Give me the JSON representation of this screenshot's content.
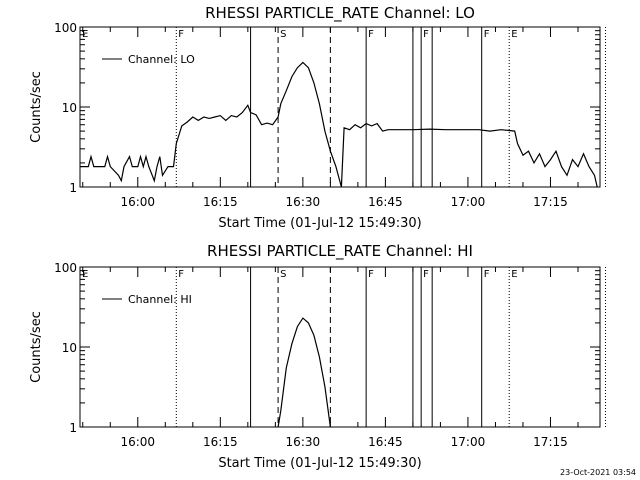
{
  "footer": {
    "timestamp": "23-Oct-2021 03:54"
  },
  "chart_data": [
    {
      "type": "line",
      "title": "RHESSI PARTICLE_RATE Channel: LO",
      "xlabel": "Start Time (01-Jul-12 15:49:30)",
      "ylabel": "Counts/sec",
      "yscale": "log",
      "ylim": [
        1,
        100
      ],
      "xlim": [
        "15:49:30",
        "17:24:00"
      ],
      "x_ticks": [
        "16:00",
        "16:15",
        "16:30",
        "16:45",
        "17:00",
        "17:15"
      ],
      "y_ticks": [
        "1",
        "10",
        "100"
      ],
      "legend": {
        "position": "top-left",
        "entries": [
          "Channel: LO"
        ]
      },
      "flags": [
        {
          "label": "E",
          "time": "15:49:30",
          "style": "none"
        },
        {
          "label": "F",
          "time": "16:07:00",
          "style": "dotted"
        },
        {
          "label": "",
          "time": "16:20:30",
          "style": "solid"
        },
        {
          "label": "S",
          "time": "16:25:30",
          "style": "dashed"
        },
        {
          "label": "",
          "time": "16:35:00",
          "style": "dashed"
        },
        {
          "label": "F",
          "time": "16:41:30",
          "style": "solid"
        },
        {
          "label": "",
          "time": "16:50:00",
          "style": "solid"
        },
        {
          "label": "F",
          "time": "16:51:30",
          "style": "solid"
        },
        {
          "label": "",
          "time": "16:53:30",
          "style": "solid"
        },
        {
          "label": "F",
          "time": "17:02:30",
          "style": "solid"
        },
        {
          "label": "E",
          "time": "17:07:30",
          "style": "dotted"
        },
        {
          "label": "",
          "time": "17:25:00",
          "style": "dotted"
        }
      ],
      "series": [
        {
          "name": "Channel: LO",
          "points": [
            [
              "15:49:30",
              1.8
            ],
            [
              "15:51:00",
              1.8
            ],
            [
              "15:51:30",
              2.4
            ],
            [
              "15:52:00",
              1.8
            ],
            [
              "15:54:00",
              1.8
            ],
            [
              "15:54:30",
              2.4
            ],
            [
              "15:55:00",
              1.8
            ],
            [
              "15:56:30",
              1.4
            ],
            [
              "15:57:00",
              1.2
            ],
            [
              "15:57:30",
              1.8
            ],
            [
              "15:58:30",
              2.4
            ],
            [
              "15:59:00",
              1.8
            ],
            [
              "16:00:00",
              1.8
            ],
            [
              "16:00:30",
              2.4
            ],
            [
              "16:01:00",
              1.8
            ],
            [
              "16:01:30",
              2.4
            ],
            [
              "16:02:00",
              1.8
            ],
            [
              "16:03:00",
              1.2
            ],
            [
              "16:03:30",
              1.8
            ],
            [
              "16:04:00",
              2.4
            ],
            [
              "16:04:30",
              1.4
            ],
            [
              "16:05:30",
              1.8
            ],
            [
              "16:06:30",
              1.8
            ],
            [
              "16:07:00",
              3.5
            ],
            [
              "16:08:00",
              5.8
            ],
            [
              "16:09:00",
              6.5
            ],
            [
              "16:10:00",
              7.5
            ],
            [
              "16:11:00",
              6.8
            ],
            [
              "16:12:00",
              7.5
            ],
            [
              "16:13:00",
              7.2
            ],
            [
              "16:14:00",
              7.5
            ],
            [
              "16:15:00",
              7.8
            ],
            [
              "16:16:00",
              6.8
            ],
            [
              "16:17:00",
              7.8
            ],
            [
              "16:18:00",
              7.5
            ],
            [
              "16:19:00",
              8.5
            ],
            [
              "16:20:00",
              10.5
            ],
            [
              "16:20:30",
              8.5
            ],
            [
              "16:21:30",
              8.0
            ],
            [
              "16:22:30",
              6.0
            ],
            [
              "16:23:30",
              6.3
            ],
            [
              "16:24:30",
              6.0
            ],
            [
              "16:25:30",
              7.5
            ],
            [
              "16:26:00",
              11
            ],
            [
              "16:27:00",
              16
            ],
            [
              "16:28:00",
              24
            ],
            [
              "16:29:00",
              31
            ],
            [
              "16:30:00",
              36
            ],
            [
              "16:31:00",
              31
            ],
            [
              "16:32:00",
              20
            ],
            [
              "16:33:00",
              11
            ],
            [
              "16:34:00",
              5
            ],
            [
              "16:35:00",
              2.8
            ],
            [
              "16:36:00",
              1.8
            ],
            [
              "16:37:00",
              1.0
            ],
            [
              "16:37:30",
              5.5
            ],
            [
              "16:38:30",
              5.2
            ],
            [
              "16:39:30",
              6.0
            ],
            [
              "16:40:30",
              5.5
            ],
            [
              "16:41:30",
              6.2
            ],
            [
              "16:42:30",
              5.8
            ],
            [
              "16:43:30",
              6.2
            ],
            [
              "16:44:30",
              5.0
            ],
            [
              "16:45:30",
              5.2
            ],
            [
              "16:47:00",
              5.2
            ],
            [
              "16:50:00",
              5.2
            ],
            [
              "16:53:00",
              5.3
            ],
            [
              "16:56:00",
              5.2
            ],
            [
              "16:59:00",
              5.2
            ],
            [
              "17:02:00",
              5.2
            ],
            [
              "17:04:00",
              5.0
            ],
            [
              "17:06:00",
              5.2
            ],
            [
              "17:08:30",
              5.0
            ],
            [
              "17:09:00",
              3.5
            ],
            [
              "17:10:00",
              2.5
            ],
            [
              "17:11:00",
              2.8
            ],
            [
              "17:12:00",
              2.0
            ],
            [
              "17:13:00",
              2.6
            ],
            [
              "17:14:00",
              1.8
            ],
            [
              "17:15:00",
              2.2
            ],
            [
              "17:16:00",
              2.8
            ],
            [
              "17:17:00",
              1.8
            ],
            [
              "17:18:00",
              1.4
            ],
            [
              "17:19:00",
              2.2
            ],
            [
              "17:20:00",
              1.8
            ],
            [
              "17:21:00",
              2.6
            ],
            [
              "17:22:00",
              1.8
            ],
            [
              "17:23:00",
              1.4
            ],
            [
              "17:23:30",
              1.0
            ]
          ]
        }
      ]
    },
    {
      "type": "line",
      "title": "RHESSI PARTICLE_RATE Channel: HI",
      "xlabel": "Start Time (01-Jul-12 15:49:30)",
      "ylabel": "Counts/sec",
      "yscale": "log",
      "ylim": [
        1,
        100
      ],
      "xlim": [
        "15:49:30",
        "17:24:00"
      ],
      "x_ticks": [
        "16:00",
        "16:15",
        "16:30",
        "16:45",
        "17:00",
        "17:15"
      ],
      "y_ticks": [
        "1",
        "10",
        "100"
      ],
      "legend": {
        "position": "top-left",
        "entries": [
          "Channel: HI"
        ]
      },
      "flags": [
        {
          "label": "E",
          "time": "15:49:30",
          "style": "none"
        },
        {
          "label": "F",
          "time": "16:07:00",
          "style": "dotted"
        },
        {
          "label": "",
          "time": "16:20:30",
          "style": "solid"
        },
        {
          "label": "S",
          "time": "16:25:30",
          "style": "dashed"
        },
        {
          "label": "",
          "time": "16:35:00",
          "style": "dashed"
        },
        {
          "label": "F",
          "time": "16:41:30",
          "style": "solid"
        },
        {
          "label": "",
          "time": "16:50:00",
          "style": "solid"
        },
        {
          "label": "F",
          "time": "16:51:30",
          "style": "solid"
        },
        {
          "label": "",
          "time": "16:53:30",
          "style": "solid"
        },
        {
          "label": "F",
          "time": "17:02:30",
          "style": "solid"
        },
        {
          "label": "E",
          "time": "17:07:30",
          "style": "dotted"
        },
        {
          "label": "",
          "time": "17:25:00",
          "style": "dotted"
        }
      ],
      "series": [
        {
          "name": "Channel: HI",
          "points": [
            [
              "16:25:30",
              1.0
            ],
            [
              "16:26:00",
              1.6
            ],
            [
              "16:26:30",
              3.0
            ],
            [
              "16:27:00",
              5.5
            ],
            [
              "16:28:00",
              11
            ],
            [
              "16:29:00",
              18
            ],
            [
              "16:30:00",
              23
            ],
            [
              "16:31:00",
              20
            ],
            [
              "16:32:00",
              14
            ],
            [
              "16:33:00",
              7.5
            ],
            [
              "16:34:00",
              3.2
            ],
            [
              "16:34:30",
              1.8
            ],
            [
              "16:35:00",
              1.0
            ]
          ]
        }
      ]
    }
  ]
}
